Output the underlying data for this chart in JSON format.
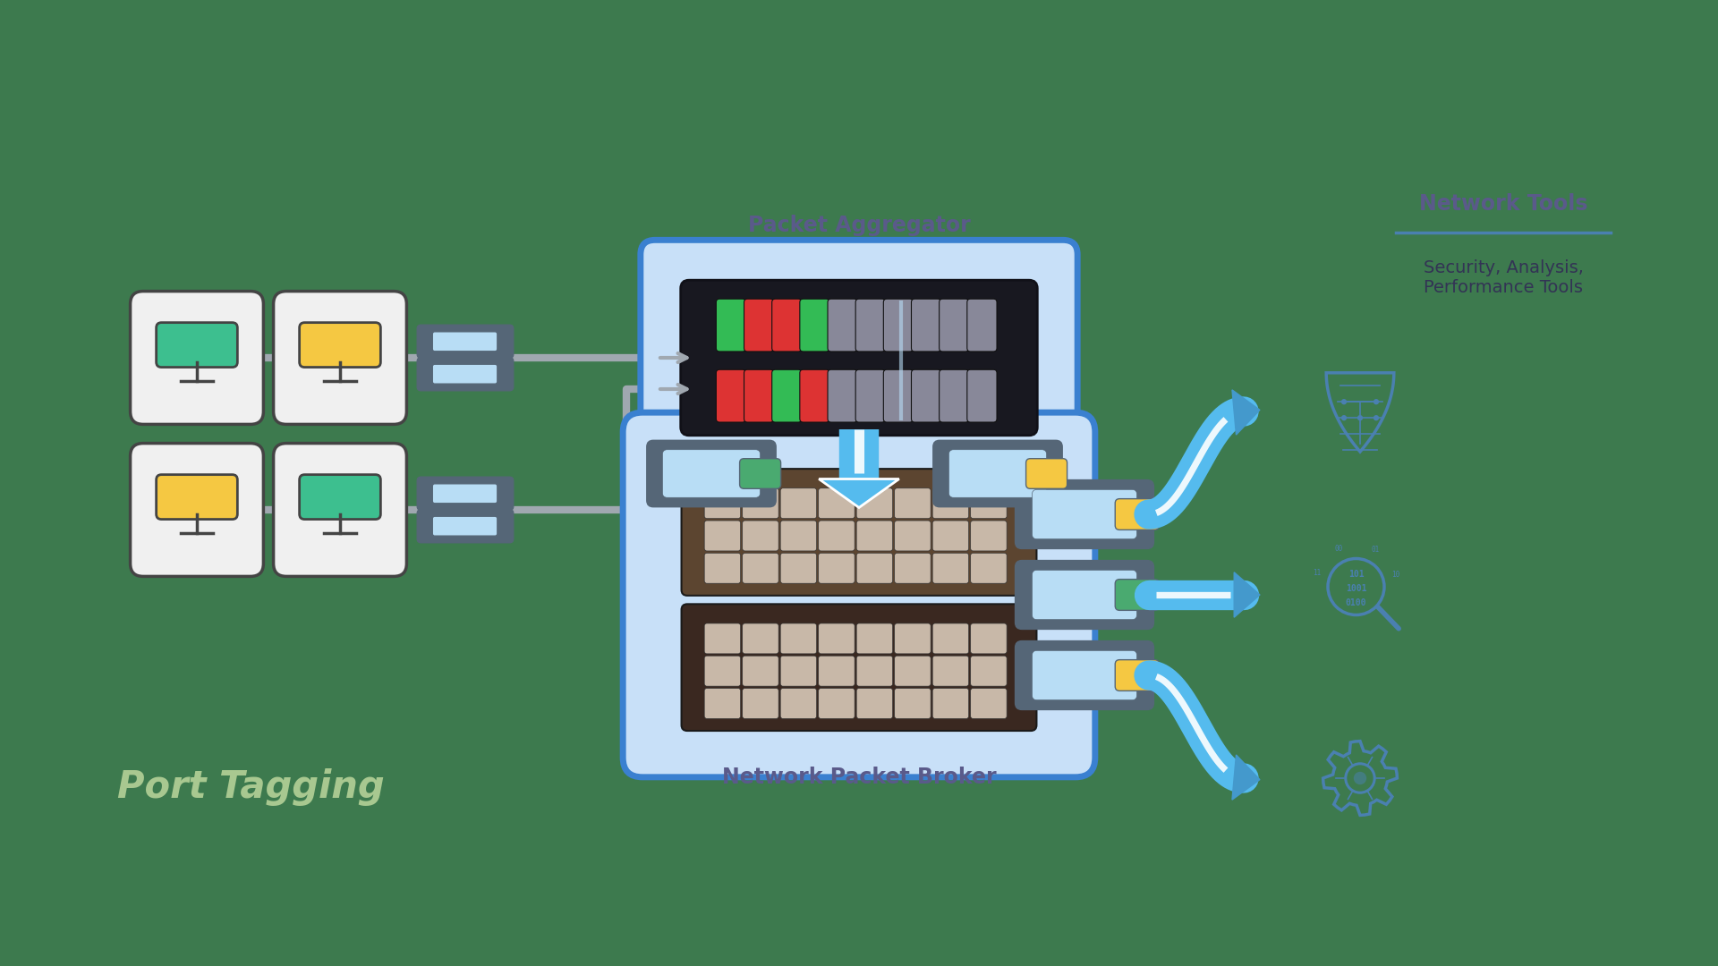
{
  "bg_color": "#3d7a4e",
  "title_port_tagging": "Port Tagging",
  "title_port_tagging_color": "#a8c890",
  "title_port_tagging_fontsize": 30,
  "label_packet_aggregator": "Packet Aggregator",
  "label_network_packet_broker": "Network Packet Broker",
  "label_network_tools": "Network Tools",
  "label_security": "Security, Analysis,\nPerformance Tools",
  "label_color": "#5a5a8a",
  "label_fontsize": 15,
  "monitor_green": "#3dbf8f",
  "monitor_yellow": "#f5c842",
  "monitor_bg": "#f0f0f0",
  "monitor_border": "#444444",
  "connector_light": "#b8ddf5",
  "connector_dark": "#556677",
  "tag_green": "#4aaa70",
  "tag_yellow": "#f5c842",
  "cable_color": "#a0a8b0",
  "agg_bg": "#181820",
  "agg_border": "#3a80d0",
  "agg_outer": "#c8e0f8",
  "broker_outer": "#c8e0f8",
  "broker_border": "#3a80d0",
  "broker_bg_top": "#5c4530",
  "broker_bg_bot": "#3a2820",
  "port_color": "#c8b8a8",
  "arrow_blue": "#55bbee",
  "arrow_head": "#4499cc",
  "white": "#ffffff",
  "icon_color": "#4a80b0",
  "led_red": "#dd3333",
  "led_green": "#33bb55",
  "led_grey": "#888899",
  "led_white": "#ccccdd"
}
